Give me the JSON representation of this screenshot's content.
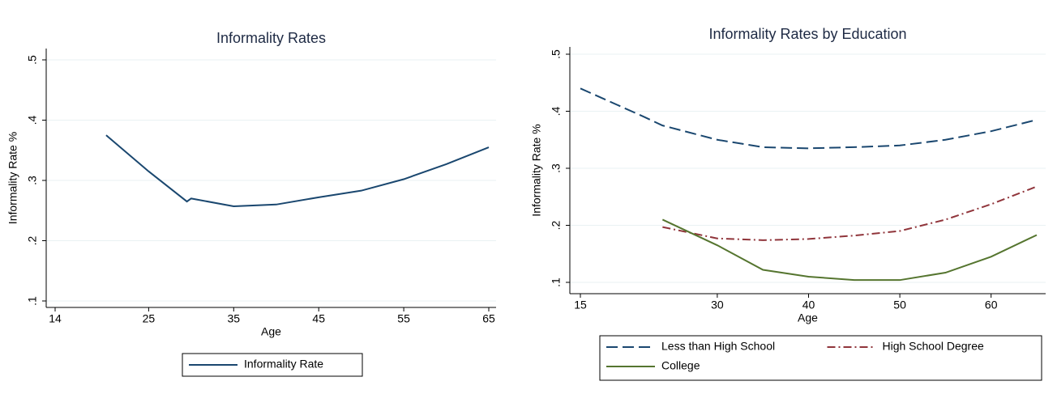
{
  "chart_data": [
    {
      "type": "line",
      "title": "Informality Rates",
      "x_label": "Age",
      "y_label": "Informality Rate %",
      "x": [
        20,
        25,
        29.5,
        30,
        35,
        40,
        45,
        50,
        55,
        60,
        65
      ],
      "series": [
        {
          "name": "Informality Rate",
          "color": "#1a476f",
          "line_style": "solid",
          "values": [
            0.375,
            0.315,
            0.265,
            0.27,
            0.257,
            0.26,
            0.272,
            0.283,
            0.302,
            0.327,
            0.355
          ]
        }
      ],
      "xlim": [
        14,
        65
      ],
      "xticks": [
        14,
        25,
        35,
        45,
        55,
        65
      ],
      "ylim": [
        0.1,
        0.5
      ],
      "yticks": [
        {
          "value": 0.1,
          "label": ".1"
        },
        {
          "value": 0.2,
          "label": ".2"
        },
        {
          "value": 0.3,
          "label": ".3"
        },
        {
          "value": 0.4,
          "label": ".4"
        },
        {
          "value": 0.5,
          "label": ".5"
        }
      ],
      "grid": true,
      "legend": "bottom"
    },
    {
      "type": "line",
      "title": "Informality Rates by Education",
      "x_label": "Age",
      "y_label": "Informality Rate %",
      "x": [
        15,
        22,
        24,
        30,
        35,
        40,
        45,
        50,
        55,
        60,
        65
      ],
      "series": [
        {
          "name": "Less than High School",
          "color": "#1a476f",
          "line_style": "dashed",
          "values": [
            0.44,
            0.39,
            0.375,
            0.35,
            0.337,
            0.335,
            0.337,
            0.34,
            0.35,
            0.365,
            0.385
          ]
        },
        {
          "name": "High School Degree",
          "color": "#90353b",
          "line_style": "dash-dot",
          "values": [
            null,
            null,
            0.197,
            0.177,
            0.174,
            0.176,
            0.182,
            0.19,
            0.21,
            0.237,
            0.268
          ]
        },
        {
          "name": "College",
          "color": "#55752f",
          "line_style": "solid",
          "values": [
            null,
            null,
            0.21,
            0.165,
            0.122,
            0.11,
            0.104,
            0.104,
            0.117,
            0.145,
            0.183
          ]
        }
      ],
      "xlim": [
        15,
        65
      ],
      "xticks": [
        15,
        30,
        40,
        50,
        60
      ],
      "ylim": [
        0.1,
        0.5
      ],
      "yticks": [
        {
          "value": 0.1,
          "label": ".1"
        },
        {
          "value": 0.2,
          "label": ".2"
        },
        {
          "value": 0.3,
          "label": ".3"
        },
        {
          "value": 0.4,
          "label": ".4"
        },
        {
          "value": 0.5,
          "label": ".5"
        }
      ],
      "grid": true,
      "legend": "bottom"
    }
  ]
}
